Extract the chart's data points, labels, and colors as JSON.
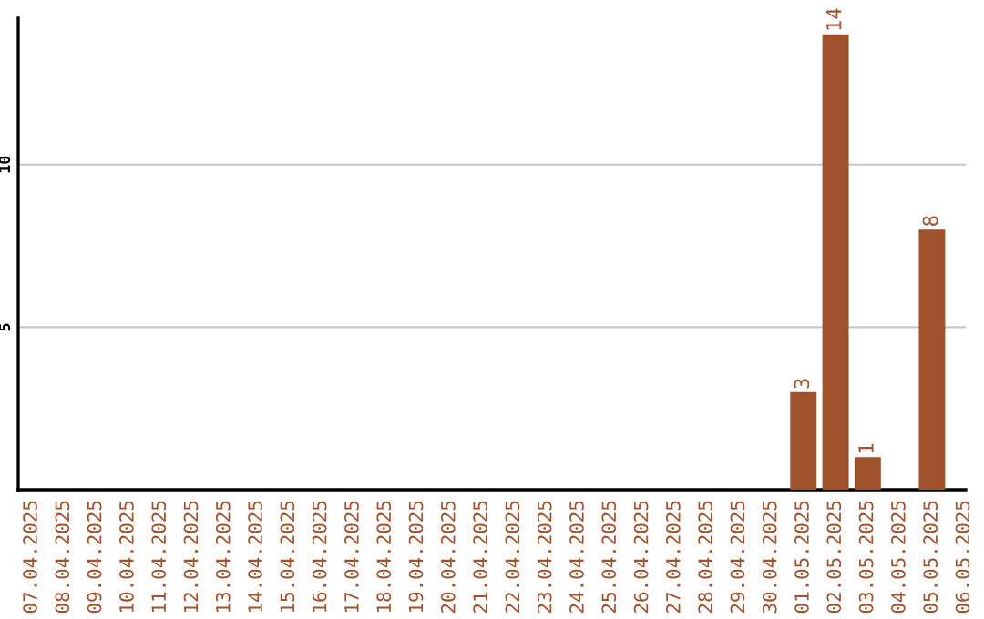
{
  "chart_data": {
    "type": "bar",
    "categories": [
      "07.04.2025",
      "08.04.2025",
      "09.04.2025",
      "10.04.2025",
      "11.04.2025",
      "12.04.2025",
      "13.04.2025",
      "14.04.2025",
      "15.04.2025",
      "16.04.2025",
      "17.04.2025",
      "18.04.2025",
      "19.04.2025",
      "20.04.2025",
      "21.04.2025",
      "22.04.2025",
      "23.04.2025",
      "24.04.2025",
      "25.04.2025",
      "26.04.2025",
      "27.04.2025",
      "28.04.2025",
      "29.04.2025",
      "30.04.2025",
      "01.05.2025",
      "02.05.2025",
      "03.05.2025",
      "04.05.2025",
      "05.05.2025",
      "06.05.2025"
    ],
    "values": [
      0,
      0,
      0,
      0,
      0,
      0,
      0,
      0,
      0,
      0,
      0,
      0,
      0,
      0,
      0,
      0,
      0,
      0,
      0,
      0,
      0,
      0,
      0,
      0,
      3,
      14,
      1,
      0,
      8,
      0
    ],
    "value_labels": [
      null,
      null,
      null,
      null,
      null,
      null,
      null,
      null,
      null,
      null,
      null,
      null,
      null,
      null,
      null,
      null,
      null,
      null,
      null,
      null,
      null,
      null,
      null,
      null,
      "3",
      "14",
      "1",
      null,
      "8",
      null
    ],
    "color": "#a0522d",
    "ylim": [
      0,
      14.5
    ],
    "yticks": [
      5,
      10
    ],
    "grid": "y",
    "legend": false
  }
}
